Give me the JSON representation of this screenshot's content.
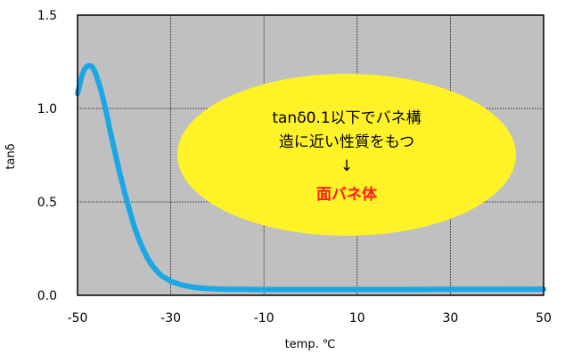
{
  "chart_data": {
    "type": "line",
    "title": "",
    "xlabel": "temp. ℃",
    "ylabel": "tanδ",
    "xlim": [
      -50,
      50
    ],
    "ylim": [
      0,
      1.5
    ],
    "x_ticks": [
      -50,
      -30,
      -10,
      10,
      30,
      50
    ],
    "y_ticks": [
      "0.0",
      "0.5",
      "1.0",
      "1.5"
    ],
    "grid": true,
    "legend": "none",
    "colors": {
      "line": "#1aa7e6",
      "plot_bg": "#c0c0c0",
      "callout_fill": "#fff227",
      "highlight_text": "#ff1a1a"
    },
    "series": [
      {
        "x": [
          -50,
          -49.5,
          -49,
          -48.5,
          -48,
          -47.5,
          -47,
          -46.5,
          -46,
          -45,
          -44,
          -43,
          -42,
          -41,
          -40,
          -39,
          -38,
          -37,
          -36,
          -35,
          -34,
          -33,
          -32,
          -31,
          -30,
          -29,
          -28,
          -27,
          -26,
          -25,
          -24,
          -23,
          -22,
          -21,
          -20,
          -18,
          -16,
          -14,
          -12,
          -10,
          -5,
          0,
          10,
          20,
          30,
          40,
          50
        ],
        "y": [
          1.08,
          1.13,
          1.18,
          1.21,
          1.225,
          1.23,
          1.225,
          1.21,
          1.18,
          1.1,
          1.0,
          0.88,
          0.77,
          0.66,
          0.56,
          0.47,
          0.38,
          0.31,
          0.25,
          0.2,
          0.16,
          0.13,
          0.105,
          0.09,
          0.075,
          0.066,
          0.058,
          0.052,
          0.047,
          0.043,
          0.04,
          0.038,
          0.036,
          0.035,
          0.034,
          0.033,
          0.032,
          0.032,
          0.031,
          0.031,
          0.031,
          0.031,
          0.031,
          0.031,
          0.032,
          0.032,
          0.033
        ]
      }
    ],
    "annotation": {
      "lines": [
        "tanδ0.1以下でバネ構",
        "造に近い性質をもつ"
      ],
      "arrow": "↓",
      "highlight": "面バネ体"
    }
  }
}
